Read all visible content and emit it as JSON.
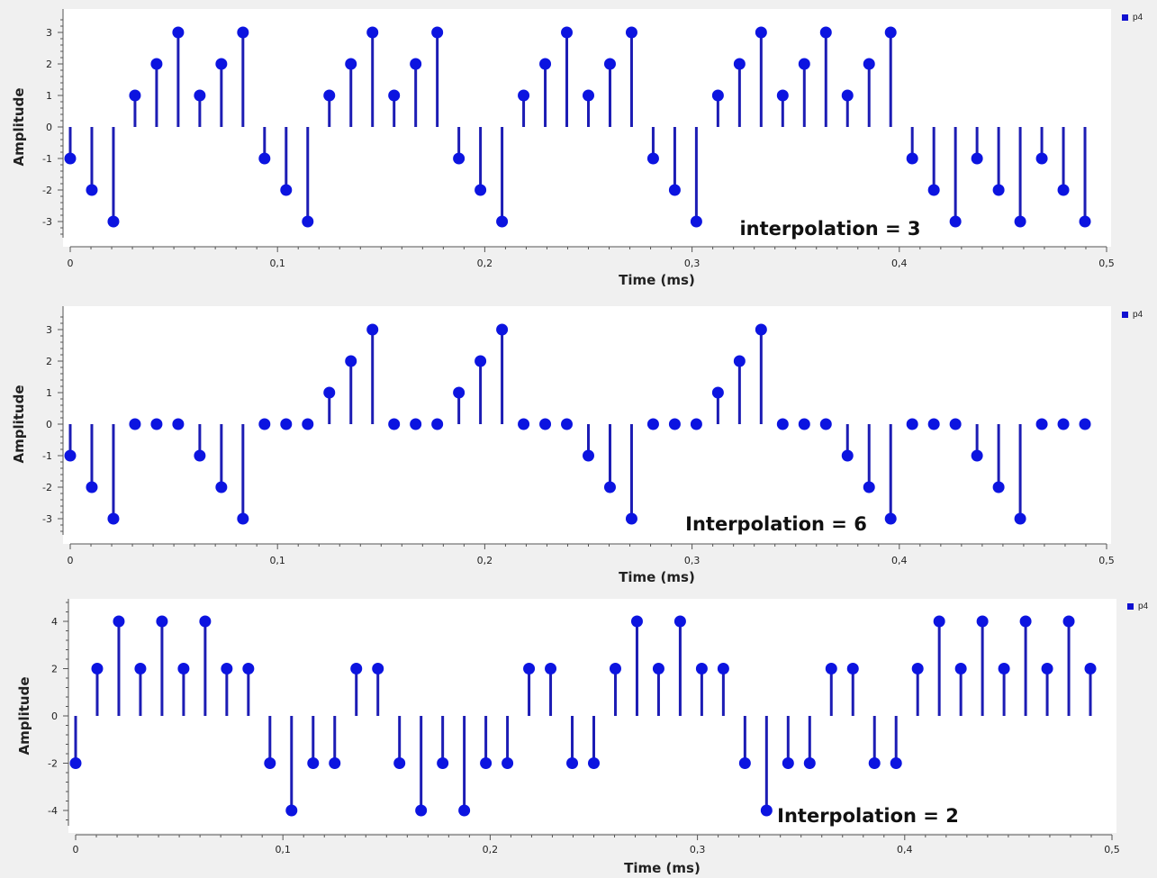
{
  "colors": {
    "stem": "#1c1cb4",
    "marker": "#0c14e0",
    "plot_bg": "#ffffff",
    "page_bg": "#f0f0f0",
    "axis": "#555555"
  },
  "chart_data": [
    {
      "type": "stem",
      "xlabel": "Time (ms)",
      "ylabel": "Amplitude",
      "annotation": "interpolation = 3",
      "legend": "p4",
      "xlim": [
        0,
        0.5
      ],
      "ylim": [
        -3.6,
        3.6
      ],
      "x_ticks": [
        "0",
        "0,1",
        "0,2",
        "0,3",
        "0,4",
        "0,5"
      ],
      "y_ticks": [
        "3",
        "2",
        "1",
        "0",
        "-1",
        "-2",
        "-3"
      ],
      "x_step": 0.0104167,
      "values": [
        -1,
        -2,
        -3,
        1,
        2,
        3,
        1,
        2,
        3,
        -1,
        -2,
        -3,
        1,
        2,
        3,
        1,
        2,
        3,
        -1,
        -2,
        -3,
        1,
        2,
        3,
        1,
        2,
        3,
        -1,
        -2,
        -3,
        1,
        2,
        3,
        1,
        2,
        3,
        1,
        2,
        3,
        -1,
        -2,
        -3,
        -1,
        -2,
        -3,
        -1,
        -2,
        -3
      ]
    },
    {
      "type": "stem",
      "xlabel": "Time (ms)",
      "ylabel": "Amplitude",
      "annotation": "Interpolation = 6",
      "legend": "p4",
      "xlim": [
        0,
        0.5
      ],
      "ylim": [
        -3.6,
        3.6
      ],
      "x_ticks": [
        "0",
        "0,1",
        "0,2",
        "0,3",
        "0,4",
        "0,5"
      ],
      "y_ticks": [
        "3",
        "2",
        "1",
        "0",
        "-1",
        "-2",
        "-3"
      ],
      "x_step": 0.0104167,
      "values": [
        -1,
        -2,
        -3,
        0,
        0,
        0,
        -1,
        -2,
        -3,
        0,
        0,
        0,
        1,
        2,
        3,
        0,
        0,
        0,
        1,
        2,
        3,
        0,
        0,
        0,
        -1,
        -2,
        -3,
        0,
        0,
        0,
        1,
        2,
        3,
        0,
        0,
        0,
        -1,
        -2,
        -3,
        0,
        0,
        0,
        -1,
        -2,
        -3,
        0,
        0,
        0
      ]
    },
    {
      "type": "stem",
      "xlabel": "Time (ms)",
      "ylabel": "Amplitude",
      "annotation": "Interpolation = 2",
      "legend": "p4",
      "xlim": [
        0,
        0.5
      ],
      "ylim": [
        -5.2,
        5.2
      ],
      "x_ticks": [
        "0",
        "0,1",
        "0,2",
        "0,3",
        "0,4",
        "0,5"
      ],
      "y_ticks": [
        "4",
        "2",
        "0",
        "-2",
        "-4"
      ],
      "x_step": 0.0104167,
      "values": [
        -2,
        2,
        4,
        2,
        4,
        2,
        4,
        2,
        2,
        -2,
        -4,
        -2,
        -2,
        2,
        2,
        -2,
        -4,
        -2,
        -4,
        -2,
        -2,
        2,
        2,
        -2,
        -2,
        2,
        4,
        2,
        4,
        2,
        2,
        -2,
        -4,
        -2,
        -2,
        2,
        2,
        -2,
        -2,
        2,
        4,
        2,
        4,
        2,
        4,
        2,
        4,
        2
      ]
    }
  ]
}
